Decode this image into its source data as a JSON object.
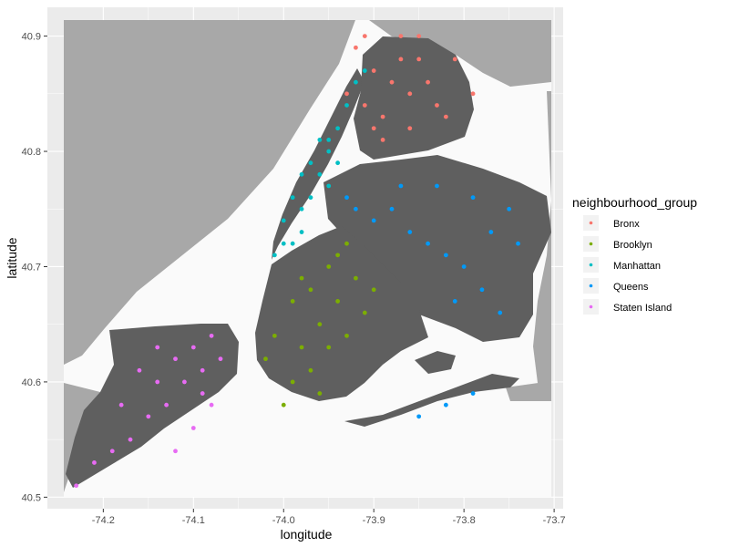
{
  "chart_data": {
    "type": "scatter",
    "title": "",
    "xlabel": "longitude",
    "ylabel": "latitude",
    "xlim": [
      -74.262,
      -73.69
    ],
    "ylim": [
      40.49,
      40.925
    ],
    "x_ticks": [
      "-74.2",
      "-74.1",
      "-74.0",
      "-73.9",
      "-73.8",
      "-73.7"
    ],
    "x_tick_values": [
      -74.2,
      -74.1,
      -74.0,
      -73.9,
      -73.8,
      -73.7
    ],
    "y_ticks": [
      "40.5",
      "40.6",
      "40.7",
      "40.8",
      "40.9"
    ],
    "y_tick_values": [
      40.5,
      40.6,
      40.7,
      40.8,
      40.9
    ],
    "grid": true,
    "legend_position": "right",
    "legend_title": "neighbourhood_group",
    "series": [
      {
        "name": "Bronx",
        "color": "#F8766D",
        "points": [
          [
            -73.92,
            40.89
          ],
          [
            -73.9,
            40.87
          ],
          [
            -73.88,
            40.86
          ],
          [
            -73.86,
            40.85
          ],
          [
            -73.91,
            40.84
          ],
          [
            -73.89,
            40.83
          ],
          [
            -73.87,
            40.88
          ],
          [
            -73.85,
            40.88
          ],
          [
            -73.84,
            40.86
          ],
          [
            -73.83,
            40.84
          ],
          [
            -73.82,
            40.83
          ],
          [
            -73.93,
            40.85
          ],
          [
            -73.9,
            40.82
          ],
          [
            -73.86,
            40.82
          ],
          [
            -73.81,
            40.88
          ],
          [
            -73.79,
            40.85
          ],
          [
            -73.91,
            40.9
          ],
          [
            -73.87,
            40.9
          ],
          [
            -73.85,
            40.9
          ],
          [
            -73.89,
            40.81
          ]
        ]
      },
      {
        "name": "Brooklyn",
        "color": "#7CAE00",
        "points": [
          [
            -73.95,
            40.7
          ],
          [
            -73.97,
            40.68
          ],
          [
            -73.99,
            40.67
          ],
          [
            -73.94,
            40.67
          ],
          [
            -73.92,
            40.69
          ],
          [
            -73.96,
            40.65
          ],
          [
            -73.98,
            40.63
          ],
          [
            -74.01,
            40.64
          ],
          [
            -74.02,
            40.62
          ],
          [
            -73.97,
            40.61
          ],
          [
            -73.95,
            40.63
          ],
          [
            -73.93,
            40.64
          ],
          [
            -73.91,
            40.66
          ],
          [
            -73.9,
            40.68
          ],
          [
            -73.96,
            40.59
          ],
          [
            -73.99,
            40.6
          ],
          [
            -73.94,
            40.71
          ],
          [
            -73.98,
            40.69
          ],
          [
            -73.93,
            40.72
          ],
          [
            -74.0,
            40.58
          ]
        ]
      },
      {
        "name": "Manhattan",
        "color": "#00BFC4",
        "points": [
          [
            -74.01,
            40.71
          ],
          [
            -73.99,
            40.72
          ],
          [
            -74.0,
            40.74
          ],
          [
            -73.98,
            40.75
          ],
          [
            -73.97,
            40.76
          ],
          [
            -73.99,
            40.76
          ],
          [
            -73.96,
            40.78
          ],
          [
            -73.97,
            40.79
          ],
          [
            -73.95,
            40.8
          ],
          [
            -73.94,
            40.82
          ],
          [
            -73.95,
            40.81
          ],
          [
            -73.93,
            40.84
          ],
          [
            -73.92,
            40.86
          ],
          [
            -73.98,
            40.78
          ],
          [
            -74.0,
            40.72
          ],
          [
            -73.98,
            40.73
          ],
          [
            -73.95,
            40.77
          ],
          [
            -73.94,
            40.79
          ],
          [
            -73.96,
            40.81
          ],
          [
            -73.91,
            40.87
          ]
        ]
      },
      {
        "name": "Queens",
        "color": "#0099F8",
        "points": [
          [
            -73.92,
            40.75
          ],
          [
            -73.9,
            40.74
          ],
          [
            -73.88,
            40.75
          ],
          [
            -73.86,
            40.73
          ],
          [
            -73.84,
            40.72
          ],
          [
            -73.82,
            40.71
          ],
          [
            -73.8,
            40.7
          ],
          [
            -73.78,
            40.68
          ],
          [
            -73.76,
            40.66
          ],
          [
            -73.74,
            40.72
          ],
          [
            -73.75,
            40.75
          ],
          [
            -73.79,
            40.76
          ],
          [
            -73.83,
            40.77
          ],
          [
            -73.87,
            40.77
          ],
          [
            -73.93,
            40.76
          ],
          [
            -73.81,
            40.67
          ],
          [
            -73.77,
            40.73
          ],
          [
            -73.79,
            40.59
          ],
          [
            -73.82,
            40.58
          ],
          [
            -73.85,
            40.57
          ]
        ]
      },
      {
        "name": "Staten Island",
        "color": "#E76BF3",
        "points": [
          [
            -74.08,
            40.64
          ],
          [
            -74.1,
            40.63
          ],
          [
            -74.12,
            40.62
          ],
          [
            -74.14,
            40.63
          ],
          [
            -74.16,
            40.61
          ],
          [
            -74.09,
            40.61
          ],
          [
            -74.11,
            40.6
          ],
          [
            -74.13,
            40.58
          ],
          [
            -74.15,
            40.57
          ],
          [
            -74.17,
            40.55
          ],
          [
            -74.19,
            40.54
          ],
          [
            -74.21,
            40.53
          ],
          [
            -74.23,
            40.51
          ],
          [
            -74.08,
            40.58
          ],
          [
            -74.1,
            40.56
          ],
          [
            -74.12,
            40.54
          ],
          [
            -74.07,
            40.62
          ],
          [
            -74.09,
            40.59
          ],
          [
            -74.14,
            40.6
          ],
          [
            -74.18,
            40.58
          ]
        ]
      }
    ]
  }
}
